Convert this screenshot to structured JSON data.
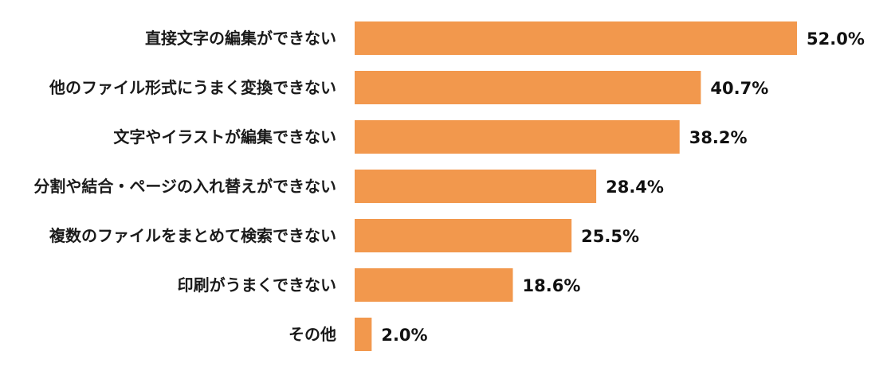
{
  "chart_data": {
    "type": "bar",
    "orientation": "horizontal",
    "categories": [
      "直接文字の編集ができない",
      "他のファイル形式にうまく変換できない",
      "文字やイラストが編集できない",
      "分割や結合・ページの入れ替えができない",
      "複数のファイルをまとめて検索できない",
      "印刷がうまくできない",
      "その他"
    ],
    "values": [
      52.0,
      40.7,
      38.2,
      28.4,
      25.5,
      18.6,
      2.0
    ],
    "value_labels": [
      "52.0%",
      "40.7%",
      "38.2%",
      "28.4%",
      "25.5%",
      "18.6%",
      "2.0%"
    ],
    "unit": "%",
    "xlim": [
      0,
      52
    ],
    "grid": false,
    "legend": "none",
    "bar_color": "#F2984D",
    "title": "",
    "xlabel": "",
    "ylabel": ""
  }
}
